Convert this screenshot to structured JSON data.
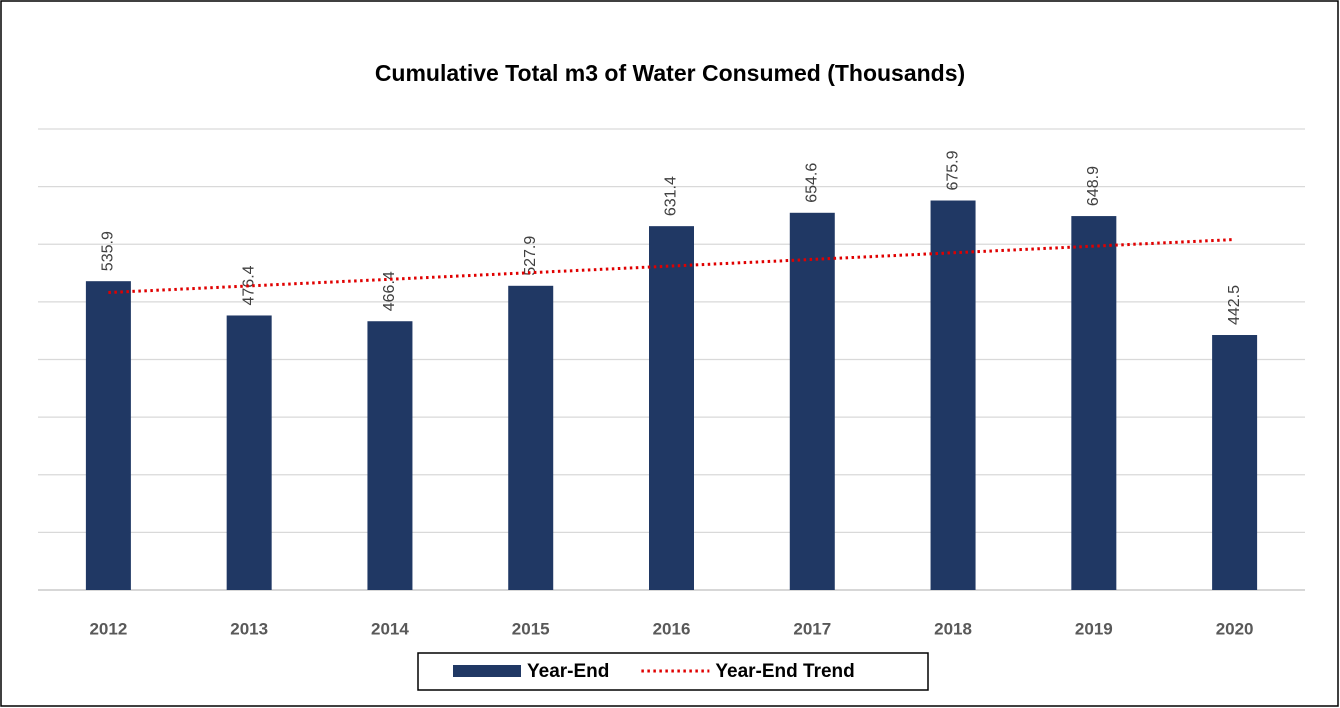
{
  "chart_data": {
    "type": "bar",
    "title": "Cumulative Total m3 of Water Consumed (Thousands)",
    "categories": [
      "2012",
      "2013",
      "2014",
      "2015",
      "2016",
      "2017",
      "2018",
      "2019",
      "2020"
    ],
    "series": [
      {
        "name": "Year-End",
        "type": "bar",
        "color": "#203864",
        "values": [
          535.9,
          476.4,
          466.4,
          527.9,
          631.4,
          654.6,
          675.9,
          648.9,
          442.5
        ]
      },
      {
        "name": "Year-End Trend",
        "type": "line",
        "color": "#e00000",
        "values": [
          516.2,
          527.7,
          539.2,
          550.7,
          562.2,
          573.7,
          585.2,
          596.7,
          608.2
        ]
      }
    ],
    "ylim": [
      0,
      800
    ],
    "yticks": [
      0,
      100,
      200,
      300,
      400,
      500,
      600,
      700,
      800
    ],
    "grid": true,
    "legend": "bottom"
  }
}
